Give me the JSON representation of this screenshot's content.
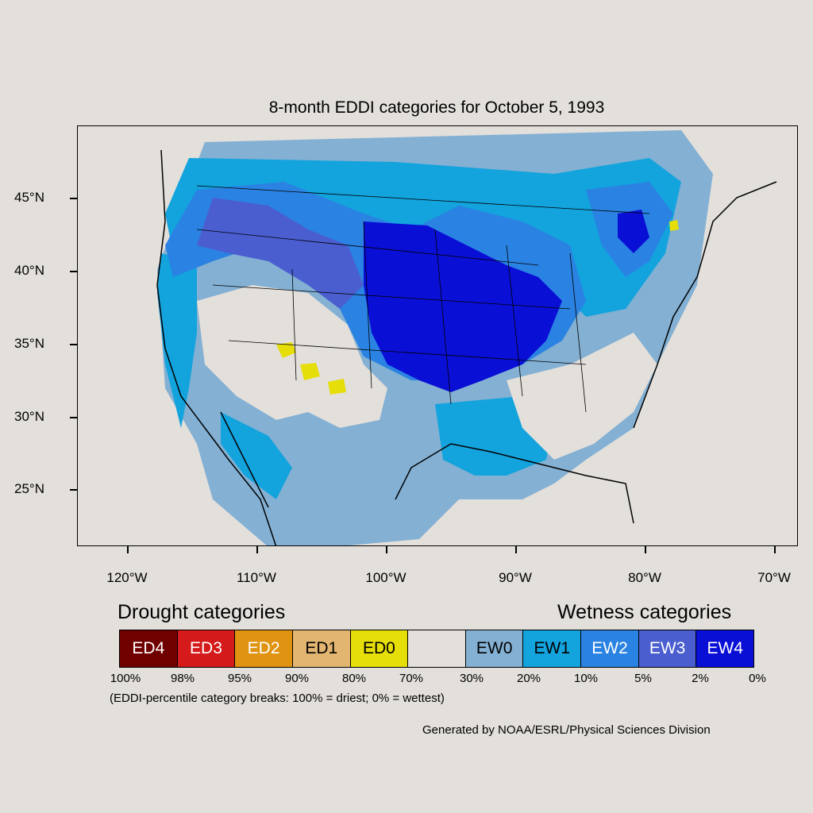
{
  "title": "8-month EDDI categories for October 5, 1993",
  "lat_ticks": [
    "45°N",
    "40°N",
    "35°N",
    "30°N",
    "25°N"
  ],
  "lon_ticks": [
    "120°W",
    "110°W",
    "100°W",
    "90°W",
    "80°W",
    "70°W"
  ],
  "legend": {
    "drought_heading": "Drought categories",
    "wetness_heading": "Wetness categories",
    "categories": [
      {
        "label": "ED4",
        "color": "#700000",
        "text_color": "#ffffff"
      },
      {
        "label": "ED3",
        "color": "#d41a1a",
        "text_color": "#ffffff"
      },
      {
        "label": "ED2",
        "color": "#e09310",
        "text_color": "#ffffff"
      },
      {
        "label": "ED1",
        "color": "#e2b570",
        "text_color": "#000000"
      },
      {
        "label": "ED0",
        "color": "#e5de08",
        "text_color": "#000000"
      },
      {
        "label": "",
        "color": "#e3dfdb",
        "text_color": "#000000"
      },
      {
        "label": "EW0",
        "color": "#83b0d3",
        "text_color": "#000000"
      },
      {
        "label": "EW1",
        "color": "#13a3dd",
        "text_color": "#000000"
      },
      {
        "label": "EW2",
        "color": "#2a82e2",
        "text_color": "#ffffff"
      },
      {
        "label": "EW3",
        "color": "#4a5ed0",
        "text_color": "#ffffff"
      },
      {
        "label": "EW4",
        "color": "#0a0fd6",
        "text_color": "#ffffff"
      }
    ],
    "percentiles": [
      "100%",
      "98%",
      "95%",
      "90%",
      "80%",
      "70%",
      "30%",
      "20%",
      "10%",
      "5%",
      "2%",
      "0%"
    ],
    "note": "(EDDI-percentile category breaks: 100% = driest; 0% = wettest)"
  },
  "credit": "Generated by NOAA/ESRL/Physical Sciences Division"
}
